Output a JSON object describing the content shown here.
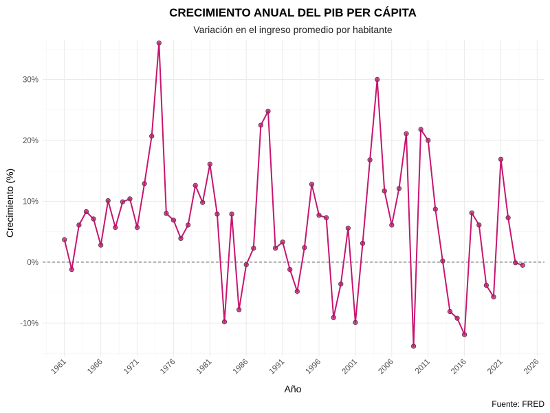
{
  "chart_data": {
    "type": "line",
    "title": "CRECIMIENTO ANUAL DEL PIB PER CÁPITA",
    "subtitle": "Variación en el ingreso promedio por habitante",
    "xlabel": "Año",
    "ylabel": "Crecimiento (%)",
    "caption": "Fuente: FRED",
    "xlim": [
      1958,
      2027
    ],
    "ylim": [
      -15.5,
      36.5
    ],
    "x_ticks": [
      1961,
      1966,
      1971,
      1976,
      1981,
      1986,
      1991,
      1996,
      2001,
      2006,
      2011,
      2016,
      2021,
      2026
    ],
    "x_tick_labels": [
      "1961",
      "1966",
      "1971",
      "1976",
      "1981",
      "1986",
      "1991",
      "1996",
      "2001",
      "2006",
      "2011",
      "2016",
      "2021",
      "2026"
    ],
    "y_ticks": [
      -10,
      0,
      10,
      20,
      30
    ],
    "y_tick_labels": [
      "-10%",
      "0%",
      "10%",
      "20%",
      "30%"
    ],
    "reference_line": 0,
    "line_color": "#c71570",
    "point_color": "#c71570",
    "grid": true,
    "x": [
      1961,
      1962,
      1963,
      1964,
      1965,
      1966,
      1967,
      1968,
      1969,
      1970,
      1971,
      1972,
      1973,
      1974,
      1975,
      1976,
      1977,
      1978,
      1979,
      1980,
      1981,
      1982,
      1983,
      1984,
      1985,
      1986,
      1987,
      1988,
      1989,
      1990,
      1991,
      1992,
      1993,
      1994,
      1995,
      1996,
      1997,
      1998,
      1999,
      2000,
      2001,
      2002,
      2003,
      2004,
      2005,
      2006,
      2007,
      2008,
      2009,
      2010,
      2011,
      2012,
      2013,
      2014,
      2015,
      2016,
      2017,
      2018,
      2019,
      2020,
      2021,
      2022,
      2023,
      2024
    ],
    "series": [
      {
        "values": [
          3.7,
          -1.2,
          6.1,
          8.3,
          7.1,
          2.8,
          10.1,
          5.7,
          9.9,
          10.4,
          5.7,
          12.9,
          20.7,
          36.0,
          8.0,
          6.9,
          3.9,
          6.1,
          12.6,
          9.8,
          16.1,
          7.9,
          -9.8,
          7.9,
          -7.8,
          -0.4,
          2.3,
          22.5,
          24.8,
          2.3,
          3.3,
          -1.2,
          -4.8,
          2.4,
          12.8,
          7.7,
          7.3,
          -9.1,
          -3.6,
          5.6,
          -9.9,
          3.1,
          16.8,
          30.0,
          11.7,
          6.1,
          12.1,
          21.1,
          -13.8,
          21.8,
          20.0,
          8.7,
          0.2,
          -8.1,
          -9.2,
          -11.9,
          8.1,
          6.1,
          -3.8,
          -5.7,
          16.9,
          7.3,
          -0.1,
          -0.5
        ]
      }
    ]
  }
}
